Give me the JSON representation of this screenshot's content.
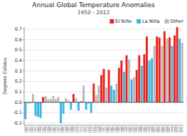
{
  "chart_data": {
    "type": "bar",
    "title": "Annual Global Temperature Anomalies",
    "subtitle": "1950 - 2012",
    "ylabel": "Degrees Celsius",
    "categories": [
      1950,
      1951,
      1952,
      1953,
      1954,
      1955,
      1956,
      1957,
      1958,
      1959,
      1960,
      1961,
      1962,
      1963,
      1964,
      1965,
      1966,
      1967,
      1968,
      1969,
      1970,
      1971,
      1972,
      1973,
      1974,
      1975,
      1976,
      1977,
      1978,
      1979,
      1980,
      1981,
      1982,
      1983,
      1984,
      1985,
      1986,
      1987,
      1988,
      1989,
      1990,
      1991,
      1992,
      1993,
      1994,
      1995,
      1996,
      1997,
      1998,
      1999,
      2000,
      2001,
      2002,
      2003,
      2004,
      2005,
      2006,
      2007,
      2008,
      2009,
      2010,
      2011,
      2012
    ],
    "series": [
      {
        "name": "El Niño",
        "color": "#e8221b",
        "values": [
          null,
          null,
          null,
          null,
          null,
          null,
          null,
          0.05,
          null,
          null,
          null,
          null,
          null,
          null,
          null,
          null,
          null,
          null,
          null,
          0.08,
          null,
          null,
          0.01,
          null,
          null,
          null,
          null,
          0.18,
          null,
          null,
          0.26,
          0.32,
          null,
          0.31,
          null,
          null,
          null,
          0.33,
          0.4,
          null,
          0.45,
          null,
          null,
          null,
          0.31,
          0.45,
          null,
          0.46,
          0.63,
          null,
          null,
          null,
          0.63,
          0.62,
          null,
          0.68,
          null,
          0.62,
          null,
          0.64,
          0.72,
          null,
          null
        ]
      },
      {
        "name": "La Niña",
        "color": "#3ab5e6",
        "values": [
          -0.16,
          null,
          null,
          null,
          -0.13,
          -0.14,
          -0.15,
          null,
          null,
          null,
          null,
          null,
          null,
          null,
          -0.2,
          -0.11,
          null,
          null,
          -0.07,
          null,
          null,
          -0.08,
          null,
          null,
          -0.07,
          -0.01,
          -0.1,
          null,
          null,
          null,
          null,
          null,
          null,
          null,
          0.16,
          0.12,
          null,
          null,
          null,
          0.29,
          null,
          null,
          0.22,
          null,
          null,
          null,
          0.35,
          null,
          null,
          0.4,
          0.42,
          null,
          null,
          null,
          null,
          null,
          null,
          null,
          0.54,
          null,
          null,
          0.61,
          null
        ]
      },
      {
        "name": "Other",
        "color": "#b8b8b8",
        "values": [
          null,
          -0.01,
          -0.01,
          0.08,
          null,
          null,
          null,
          null,
          0.06,
          0.03,
          0.03,
          0.06,
          0.03,
          0.05,
          null,
          null,
          0.04,
          0.02,
          null,
          null,
          0.04,
          null,
          null,
          0.16,
          null,
          null,
          null,
          null,
          0.07,
          0.16,
          null,
          null,
          0.14,
          null,
          null,
          null,
          0.18,
          null,
          null,
          null,
          null,
          0.41,
          null,
          0.24,
          null,
          null,
          null,
          null,
          null,
          null,
          null,
          0.54,
          null,
          null,
          0.54,
          null,
          0.61,
          null,
          null,
          null,
          null,
          null,
          0.57
        ]
      }
    ],
    "ylim": [
      -0.22,
      0.72
    ],
    "yticks": [
      -0.2,
      -0.1,
      {
        "value": 0,
        "label": "0.0"
      },
      0.1,
      0.2,
      0.3,
      0.4,
      0.5,
      0.6,
      0.7
    ],
    "grid": true,
    "legend": "upper right"
  }
}
